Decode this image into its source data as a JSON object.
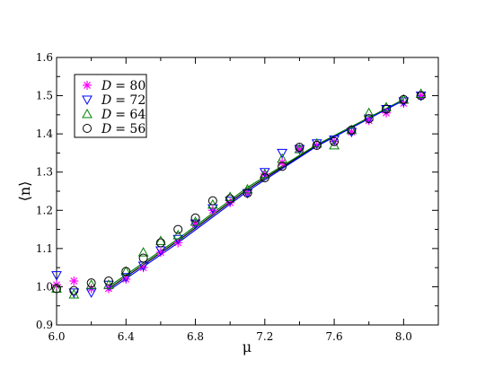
{
  "chart_data": {
    "type": "scatter",
    "xlabel": "μ",
    "ylabel": "⟨n⟩",
    "xlim": [
      6.0,
      8.2
    ],
    "ylim": [
      0.9,
      1.6
    ],
    "xticks": [
      6.0,
      6.4,
      6.8,
      7.2,
      7.6,
      8.0
    ],
    "xtick_labels": [
      "6.0",
      "6.4",
      "6.8",
      "7.2",
      "7.6",
      "8.0"
    ],
    "yticks": [
      0.9,
      1.0,
      1.1,
      1.2,
      1.3,
      1.4,
      1.5,
      1.6
    ],
    "ytick_labels": [
      "0.9",
      "1.0",
      "1.1",
      "1.2",
      "1.3",
      "1.4",
      "1.5",
      "1.6"
    ],
    "grid": false,
    "legend_position": "top-left",
    "series": [
      {
        "name_prefix": "D",
        "name_value": "= 80",
        "marker": "asterisk",
        "color": "#ff00ff",
        "x": [
          6.0,
          6.1,
          6.2,
          6.3,
          6.4,
          6.5,
          6.6,
          6.7,
          6.8,
          6.9,
          7.0,
          7.1,
          7.2,
          7.3,
          7.4,
          7.5,
          7.6,
          7.7,
          7.8,
          7.9,
          8.0,
          8.1
        ],
        "y": [
          1.005,
          1.015,
          0.995,
          0.995,
          1.02,
          1.05,
          1.09,
          1.115,
          1.165,
          1.2,
          1.22,
          1.245,
          1.295,
          1.325,
          1.36,
          1.37,
          1.38,
          1.405,
          1.435,
          1.455,
          1.48,
          1.5
        ]
      },
      {
        "name_prefix": "D",
        "name_value": "= 72",
        "marker": "triangle-down",
        "color": "#0000ff",
        "x": [
          6.0,
          6.1,
          6.2,
          6.3,
          6.4,
          6.5,
          6.6,
          6.7,
          6.8,
          6.9,
          7.0,
          7.1,
          7.2,
          7.3,
          7.4,
          7.5,
          7.6,
          7.7,
          7.8,
          7.9,
          8.0,
          8.1
        ],
        "y": [
          1.03,
          0.985,
          0.985,
          1.005,
          1.025,
          1.055,
          1.095,
          1.125,
          1.165,
          1.205,
          1.225,
          1.245,
          1.3,
          1.35,
          1.36,
          1.375,
          1.385,
          1.405,
          1.44,
          1.465,
          1.485,
          1.5
        ]
      },
      {
        "name_prefix": "D",
        "name_value": "= 64",
        "marker": "triangle-up",
        "color": "#008000",
        "x": [
          6.0,
          6.1,
          6.2,
          6.3,
          6.4,
          6.5,
          6.6,
          6.7,
          6.8,
          6.9,
          7.0,
          7.1,
          7.2,
          7.3,
          7.4,
          7.5,
          7.6,
          7.7,
          7.8,
          7.9,
          8.0,
          8.1
        ],
        "y": [
          0.995,
          0.98,
          1.005,
          1.005,
          1.04,
          1.09,
          1.12,
          1.135,
          1.17,
          1.215,
          1.235,
          1.255,
          1.295,
          1.335,
          1.36,
          1.375,
          1.37,
          1.41,
          1.455,
          1.47,
          1.49,
          1.505
        ]
      },
      {
        "name_prefix": "D",
        "name_value": "= 56",
        "marker": "circle",
        "color": "#000000",
        "x": [
          6.0,
          6.1,
          6.2,
          6.3,
          6.4,
          6.5,
          6.6,
          6.7,
          6.8,
          6.9,
          7.0,
          7.1,
          7.2,
          7.3,
          7.4,
          7.5,
          7.6,
          7.7,
          7.8,
          7.9,
          8.0,
          8.1
        ],
        "y": [
          0.995,
          0.99,
          1.01,
          1.015,
          1.04,
          1.075,
          1.115,
          1.15,
          1.18,
          1.225,
          1.23,
          1.245,
          1.285,
          1.315,
          1.365,
          1.37,
          1.38,
          1.41,
          1.44,
          1.465,
          1.49,
          1.5
        ]
      }
    ],
    "fit_lines": [
      {
        "color": "#000000",
        "x": [
          6.3,
          6.7,
          7.1,
          7.5,
          8.0
        ],
        "y": [
          0.995,
          1.12,
          1.255,
          1.37,
          1.49
        ]
      },
      {
        "color": "#008000",
        "x": [
          6.3,
          6.7,
          7.1,
          7.5,
          8.0
        ],
        "y": [
          1.0,
          1.125,
          1.26,
          1.372,
          1.49
        ]
      },
      {
        "color": "#0000ff",
        "x": [
          6.3,
          6.7,
          7.1,
          7.5,
          8.0
        ],
        "y": [
          0.99,
          1.115,
          1.25,
          1.368,
          1.488
        ]
      }
    ]
  }
}
